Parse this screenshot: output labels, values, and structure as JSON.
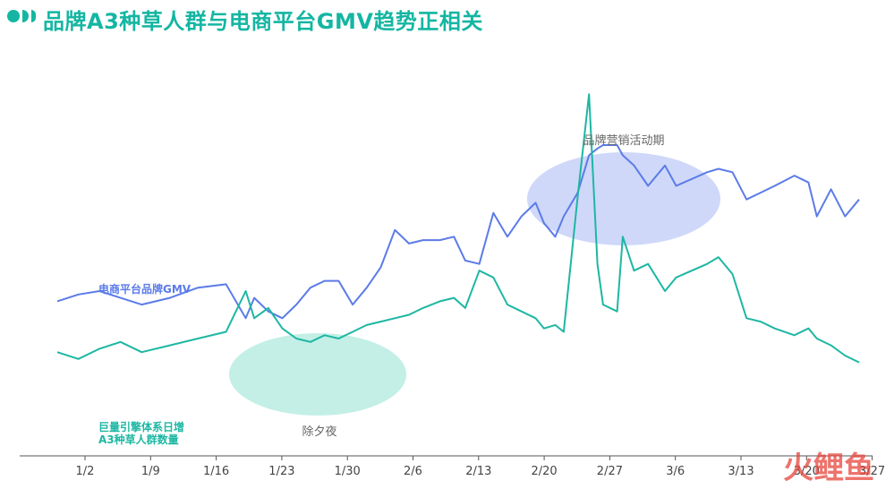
{
  "title": "品牌A3种草人群与电商平台GMV趋势正相关",
  "watermark": "火鲤鱼",
  "chart_data": {
    "type": "line",
    "title": "品牌A3种草人群与电商平台GMV趋势正相关",
    "x_tick_labels": [
      "1/2",
      "1/9",
      "1/16",
      "1/23",
      "1/30",
      "2/6",
      "2/13",
      "2/20",
      "2/27",
      "3/6",
      "3/13",
      "3/20",
      "3/27"
    ],
    "y_range": [
      0,
      100
    ],
    "grid": false,
    "series": [
      {
        "name": "电商平台品牌GMV",
        "color": "#5b7be8",
        "points": [
          [
            0.0,
            35
          ],
          [
            0.75,
            37
          ],
          [
            1.5,
            38
          ],
          [
            2.25,
            36
          ],
          [
            3.0,
            34
          ],
          [
            4.0,
            36
          ],
          [
            5.0,
            39
          ],
          [
            6.0,
            40
          ],
          [
            6.7,
            30
          ],
          [
            7.0,
            36
          ],
          [
            7.5,
            32
          ],
          [
            8.0,
            30
          ],
          [
            8.5,
            34
          ],
          [
            9.0,
            39
          ],
          [
            9.5,
            41
          ],
          [
            10.0,
            41
          ],
          [
            10.5,
            34
          ],
          [
            11.0,
            39
          ],
          [
            11.5,
            45
          ],
          [
            12.0,
            56
          ],
          [
            12.5,
            52
          ],
          [
            13.0,
            53
          ],
          [
            13.6,
            53
          ],
          [
            14.1,
            54
          ],
          [
            14.5,
            47
          ],
          [
            15.0,
            46
          ],
          [
            15.5,
            61
          ],
          [
            16.0,
            54
          ],
          [
            16.5,
            60
          ],
          [
            17.0,
            64
          ],
          [
            17.3,
            58
          ],
          [
            17.7,
            54
          ],
          [
            18.0,
            60
          ],
          [
            18.5,
            67
          ],
          [
            18.9,
            78
          ],
          [
            19.2,
            80
          ],
          [
            19.4,
            81
          ],
          [
            19.9,
            81
          ],
          [
            20.1,
            78
          ],
          [
            20.5,
            75
          ],
          [
            21.0,
            69
          ],
          [
            21.6,
            75
          ],
          [
            22.0,
            69
          ],
          [
            23.1,
            73
          ],
          [
            23.5,
            74
          ],
          [
            24.0,
            73
          ],
          [
            24.5,
            65
          ],
          [
            25.0,
            67
          ],
          [
            25.5,
            69
          ],
          [
            26.2,
            72
          ],
          [
            26.7,
            70
          ],
          [
            27.0,
            60
          ],
          [
            27.5,
            68
          ],
          [
            28.0,
            60
          ],
          [
            28.5,
            65
          ]
        ],
        "points_note_y": "relative index 0-100"
      },
      {
        "name": "巨量引擎体系日增 A3种草人群数量",
        "color": "#1db7a3",
        "points": [
          [
            0.0,
            20
          ],
          [
            0.75,
            18
          ],
          [
            1.5,
            21
          ],
          [
            2.25,
            23
          ],
          [
            3.0,
            20
          ],
          [
            4.0,
            22
          ],
          [
            5.0,
            24
          ],
          [
            6.0,
            26
          ],
          [
            6.7,
            38
          ],
          [
            7.0,
            30
          ],
          [
            7.5,
            33
          ],
          [
            8.0,
            27
          ],
          [
            8.5,
            24
          ],
          [
            9.0,
            23
          ],
          [
            9.5,
            25
          ],
          [
            10.0,
            24
          ],
          [
            10.5,
            26
          ],
          [
            11.0,
            28
          ],
          [
            11.5,
            29
          ],
          [
            12.0,
            30
          ],
          [
            12.5,
            31
          ],
          [
            13.0,
            33
          ],
          [
            13.6,
            35
          ],
          [
            14.1,
            36
          ],
          [
            14.5,
            33
          ],
          [
            15.0,
            44
          ],
          [
            15.5,
            42
          ],
          [
            16.0,
            34
          ],
          [
            16.5,
            32
          ],
          [
            17.0,
            30
          ],
          [
            17.3,
            27
          ],
          [
            17.7,
            28
          ],
          [
            18.0,
            26
          ],
          [
            18.5,
            66
          ],
          [
            18.9,
            96
          ],
          [
            19.2,
            46
          ],
          [
            19.4,
            34
          ],
          [
            19.9,
            32
          ],
          [
            20.1,
            54
          ],
          [
            20.5,
            44
          ],
          [
            21.0,
            46
          ],
          [
            21.6,
            38
          ],
          [
            22.0,
            42
          ],
          [
            23.1,
            46
          ],
          [
            23.5,
            48
          ],
          [
            24.0,
            43
          ],
          [
            24.5,
            30
          ],
          [
            25.0,
            29
          ],
          [
            25.5,
            27
          ],
          [
            26.2,
            25
          ],
          [
            26.7,
            27
          ],
          [
            27.0,
            24
          ],
          [
            27.5,
            22
          ],
          [
            28.0,
            19
          ],
          [
            28.5,
            17
          ]
        ]
      }
    ],
    "annotations": [
      {
        "text": "品牌营销活动期",
        "type": "highlight-ellipse",
        "color": "#c7d1f8"
      },
      {
        "text": "除夕夜",
        "type": "highlight-ellipse",
        "color": "#b9ece2"
      }
    ],
    "series_labels": {
      "gmv": "电商平台品牌GMV",
      "crowd_line1": "巨量引擎体系日增",
      "crowd_line2": "A3种草人群数量"
    }
  }
}
